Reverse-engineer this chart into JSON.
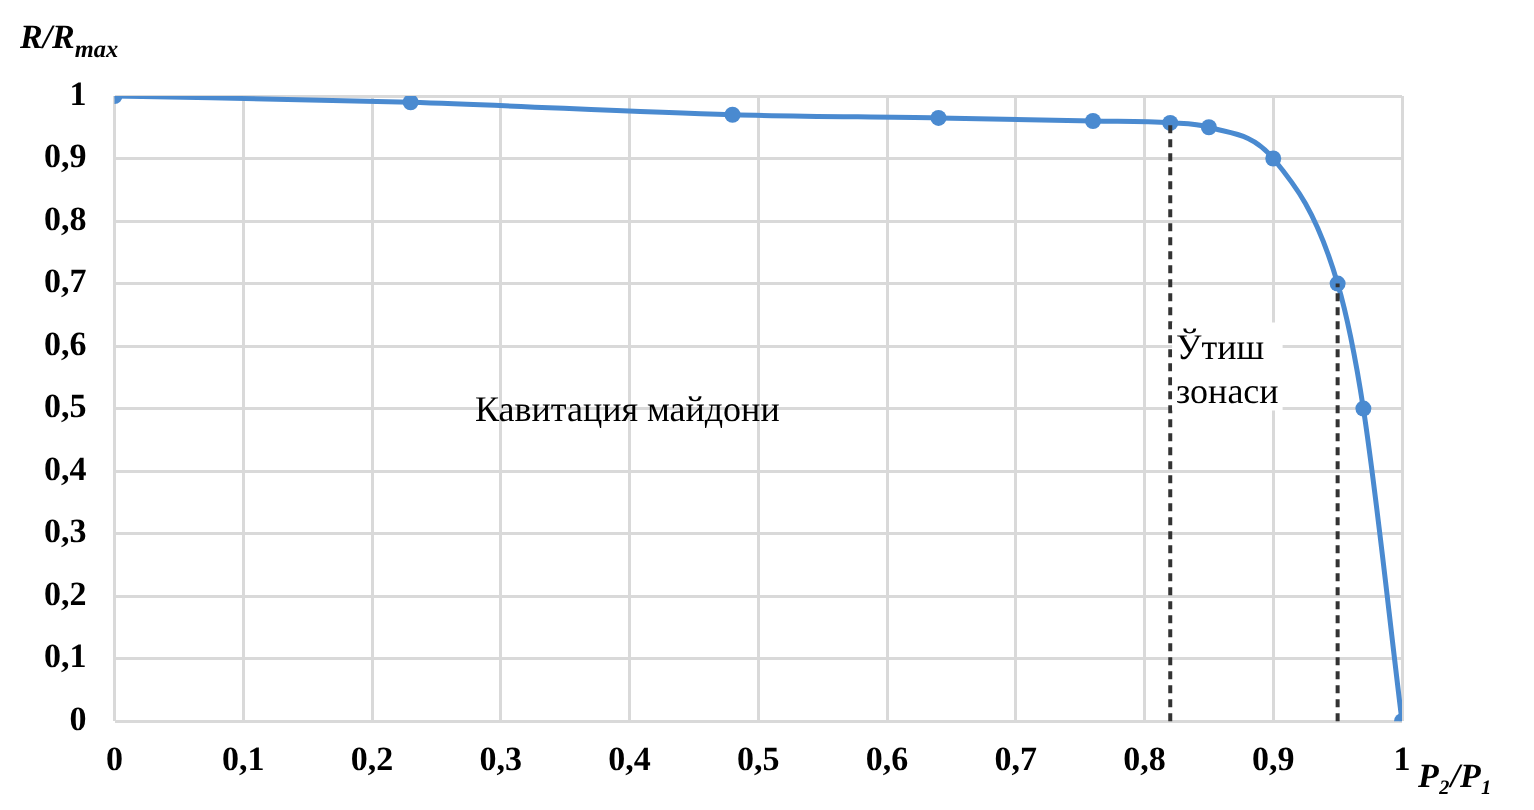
{
  "chart_data": {
    "type": "line",
    "xlabel": "P₂/P₁",
    "ylabel": "R/R$_{max}$",
    "x": [
      0,
      0.23,
      0.48,
      0.64,
      0.76,
      0.82,
      0.85,
      0.9,
      0.95,
      0.97,
      1
    ],
    "series": [
      {
        "color": "#4a8ad0",
        "values": [
          1,
          0.99,
          0.97,
          0.965,
          0.96,
          0.957,
          0.95,
          0.9,
          0.7,
          0.5,
          0
        ]
      }
    ],
    "xlim": [
      0,
      1
    ],
    "xticks": [
      0,
      {
        "value": 0.1,
        "label": "0,1"
      },
      {
        "value": 0.2,
        "label": "0,2"
      },
      {
        "value": 0.3,
        "label": "0,3"
      },
      {
        "value": 0.4,
        "label": "0,4"
      },
      {
        "value": 0.5,
        "label": "0,5"
      },
      {
        "value": 0.6,
        "label": "0,6"
      },
      {
        "value": 0.7,
        "label": "0,7"
      },
      {
        "value": 0.8,
        "label": "0,8"
      },
      {
        "value": 0.9,
        "label": "0,9"
      },
      1
    ],
    "ylim": [
      0,
      1
    ],
    "yticks": [
      0,
      {
        "value": 0.1,
        "label": "0,1"
      },
      {
        "value": 0.2,
        "label": "0,2"
      },
      {
        "value": 0.3,
        "label": "0,3"
      },
      {
        "value": 0.4,
        "label": "0,4"
      },
      {
        "value": 0.5,
        "label": "0,5"
      },
      {
        "value": 0.6,
        "label": "0,6"
      },
      {
        "value": 0.7,
        "label": "0,7"
      },
      {
        "value": 0.8,
        "label": "0,8"
      },
      {
        "value": 0.9,
        "label": "0,9"
      },
      1
    ],
    "grid": true,
    "legend": false,
    "marker": "circle",
    "line_style": "solid",
    "ref_lines": [
      {
        "axis": "x",
        "value": 0.82,
        "color": "#333333",
        "line_style": "dashed"
      },
      {
        "axis": "x",
        "value": 0.95,
        "color": "#333333",
        "line_style": "dashed"
      }
    ],
    "annotations": [
      "Кавитация майдони",
      "Ўтиш зонаси"
    ]
  }
}
